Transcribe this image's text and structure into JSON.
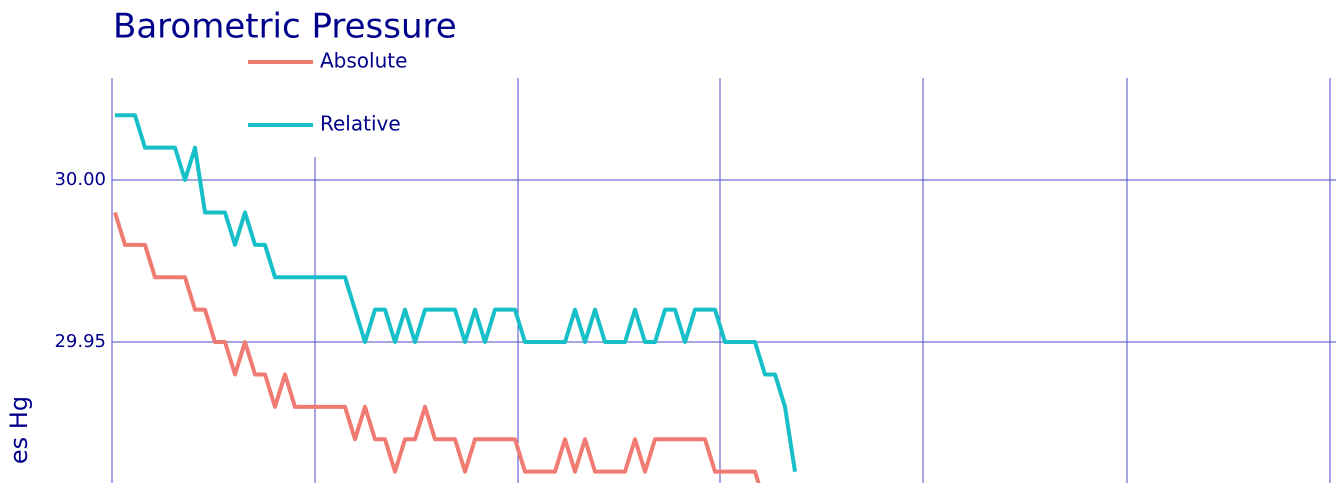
{
  "chart_data": {
    "type": "line",
    "title": "Barometric Pressure",
    "ylabel": "es Hg",
    "ylim": [
      29.9065,
      30.0315
    ],
    "yticks": [
      {
        "value": 29.95,
        "label": "29.95"
      },
      {
        "value": 30,
        "label": "30.00"
      }
    ],
    "grid": true,
    "series": [
      {
        "name": "Absolute",
        "color": "#f07b72",
        "values": [
          29.99,
          29.98,
          29.98,
          29.98,
          29.97,
          29.97,
          29.97,
          29.97,
          29.96,
          29.96,
          29.95,
          29.95,
          29.94,
          29.95,
          29.94,
          29.94,
          29.93,
          29.94,
          29.93,
          29.93,
          29.93,
          29.93,
          29.93,
          29.93,
          29.92,
          29.93,
          29.92,
          29.92,
          29.91,
          29.92,
          29.92,
          29.93,
          29.92,
          29.92,
          29.92,
          29.91,
          29.92,
          29.92,
          29.92,
          29.92,
          29.92,
          29.91,
          29.91,
          29.91,
          29.91,
          29.92,
          29.91,
          29.92,
          29.91,
          29.91,
          29.91,
          29.91,
          29.92,
          29.91,
          29.92,
          29.92,
          29.92,
          29.92,
          29.92,
          29.92,
          29.91,
          29.91,
          29.91,
          29.91,
          29.91,
          29.9,
          null,
          null,
          null
        ]
      },
      {
        "name": "Relative",
        "color": "#17c0c8",
        "values": [
          30.02,
          30.02,
          30.02,
          30.01,
          30.01,
          30.01,
          30.01,
          30.0,
          30.01,
          29.99,
          29.99,
          29.99,
          29.98,
          29.99,
          29.98,
          29.98,
          29.97,
          29.97,
          29.97,
          29.97,
          29.97,
          29.97,
          29.97,
          29.97,
          29.96,
          29.95,
          29.96,
          29.96,
          29.95,
          29.96,
          29.95,
          29.96,
          29.96,
          29.96,
          29.96,
          29.95,
          29.96,
          29.95,
          29.96,
          29.96,
          29.96,
          29.95,
          29.95,
          29.95,
          29.95,
          29.95,
          29.96,
          29.95,
          29.96,
          29.95,
          29.95,
          29.95,
          29.96,
          29.95,
          29.95,
          29.96,
          29.96,
          29.95,
          29.96,
          29.96,
          29.96,
          29.95,
          29.95,
          29.95,
          29.95,
          29.94,
          29.94,
          29.93,
          29.91
        ]
      }
    ]
  }
}
